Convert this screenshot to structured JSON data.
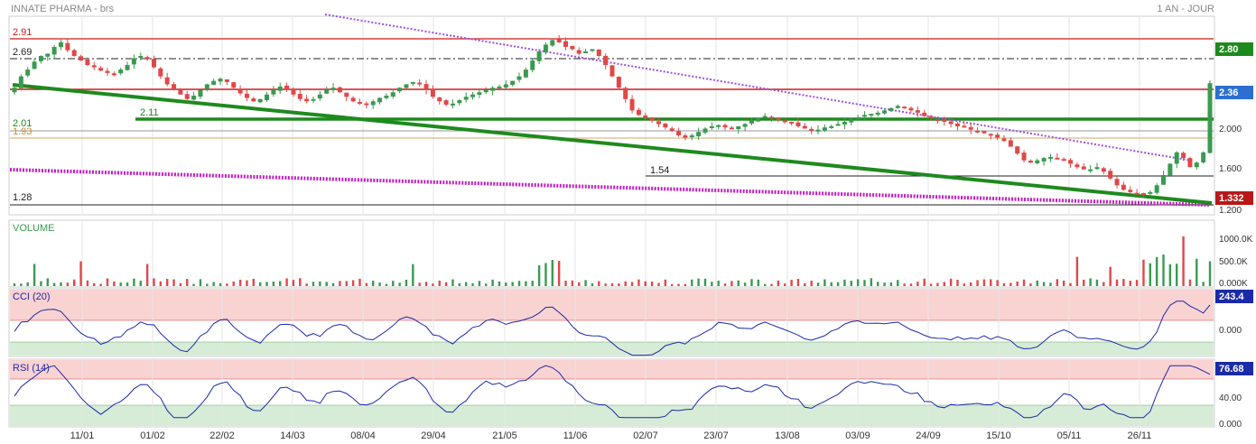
{
  "header": {
    "title": "INNATE PHARMA - brs",
    "period": "1 AN - JOUR"
  },
  "dates": [
    "11/01",
    "01/02",
    "22/02",
    "14/03",
    "08/04",
    "29/04",
    "21/05",
    "11/06",
    "02/07",
    "23/07",
    "13/08",
    "03/09",
    "24/09",
    "15/10",
    "05/11",
    "26/11"
  ],
  "colors": {
    "up": "#3a9a50",
    "down": "#e04848",
    "resistance": "#d01818",
    "trend_green": "#1e8a1e",
    "trend_purple": "#a050e0",
    "trend_magenta": "#c020c0",
    "cci_zone": "#f9d2d2",
    "rsi_zone_low": "#d6ecd6",
    "indicator_line": "#1a2aa8"
  },
  "chart_data": [
    {
      "type": "candlestick",
      "panel": "price",
      "title": "INNATE PHARMA - brs",
      "ylim": [
        1.2,
        2.95
      ],
      "y_ticks": [
        "2.000",
        "1.600",
        "1.200"
      ],
      "last_price": "2.36",
      "closes": [
        2.32,
        2.42,
        2.48,
        2.55,
        2.6,
        2.62,
        2.68,
        2.72,
        2.65,
        2.6,
        2.56,
        2.52,
        2.5,
        2.47,
        2.45,
        2.44,
        2.48,
        2.52,
        2.58,
        2.6,
        2.57,
        2.5,
        2.42,
        2.35,
        2.3,
        2.26,
        2.22,
        2.25,
        2.3,
        2.35,
        2.38,
        2.4,
        2.37,
        2.32,
        2.27,
        2.23,
        2.2,
        2.22,
        2.26,
        2.3,
        2.33,
        2.3,
        2.26,
        2.22,
        2.2,
        2.22,
        2.26,
        2.3,
        2.32,
        2.28,
        2.24,
        2.2,
        2.18,
        2.17,
        2.2,
        2.23,
        2.25,
        2.28,
        2.32,
        2.35,
        2.37,
        2.35,
        2.3,
        2.24,
        2.2,
        2.17,
        2.18,
        2.21,
        2.24,
        2.26,
        2.28,
        2.3,
        2.32,
        2.33,
        2.35,
        2.38,
        2.42,
        2.48,
        2.56,
        2.64,
        2.7,
        2.74,
        2.72,
        2.68,
        2.66,
        2.62,
        2.64,
        2.66,
        2.6,
        2.52,
        2.42,
        2.32,
        2.22,
        2.12,
        2.08,
        2.05,
        2.03,
        2.0,
        1.97,
        1.94,
        1.9,
        1.88,
        1.9,
        1.93,
        1.96,
        1.98,
        1.99,
        1.97,
        1.96,
        1.98,
        2.0,
        2.03,
        2.05,
        2.07,
        2.06,
        2.04,
        2.02,
        2.01,
        1.98,
        1.96,
        1.94,
        1.95,
        1.97,
        1.98,
        2.0,
        2.02,
        2.04,
        2.06,
        2.08,
        2.09,
        2.1,
        2.12,
        2.14,
        2.16,
        2.14,
        2.12,
        2.1,
        2.07,
        2.05,
        2.03,
        2.02,
        2.0,
        1.98,
        1.97,
        1.95,
        1.93,
        1.92,
        1.9,
        1.88,
        1.85,
        1.8,
        1.74,
        1.68,
        1.66,
        1.68,
        1.7,
        1.71,
        1.7,
        1.68,
        1.65,
        1.62,
        1.6,
        1.6,
        1.62,
        1.58,
        1.52,
        1.46,
        1.42,
        1.4,
        1.39,
        1.38,
        1.4,
        1.46,
        1.55,
        1.65,
        1.75,
        1.7,
        1.62,
        1.66,
        1.75,
        2.36
      ],
      "levels": [
        {
          "label": "2.91",
          "value": 2.91
        },
        {
          "label": "2.69",
          "value": 2.69
        },
        {
          "label": "2.01",
          "value": 2.01
        },
        {
          "label": "1.93",
          "value": 1.93
        },
        {
          "label": "1.54",
          "value": 1.54
        },
        {
          "label": "1.28",
          "value": 1.28
        },
        {
          "label": "2.11",
          "value": 2.11
        }
      ],
      "badges": [
        "2.80",
        "1.332"
      ]
    },
    {
      "type": "bar",
      "panel": "volume",
      "title": "VOLUME",
      "y_ticks": [
        "1000.0K",
        "500.0K",
        "0.000K"
      ]
    },
    {
      "type": "line",
      "panel": "cci",
      "title": "CCI (20)",
      "last_value": "243.4",
      "y_ticks": [
        "0.000"
      ],
      "ylim": [
        -250,
        300
      ]
    },
    {
      "type": "line",
      "panel": "rsi",
      "title": "RSI (14)",
      "last_value": "76.68",
      "y_ticks": [
        "40.00",
        "0.000"
      ],
      "ylim": [
        0,
        100
      ]
    }
  ]
}
